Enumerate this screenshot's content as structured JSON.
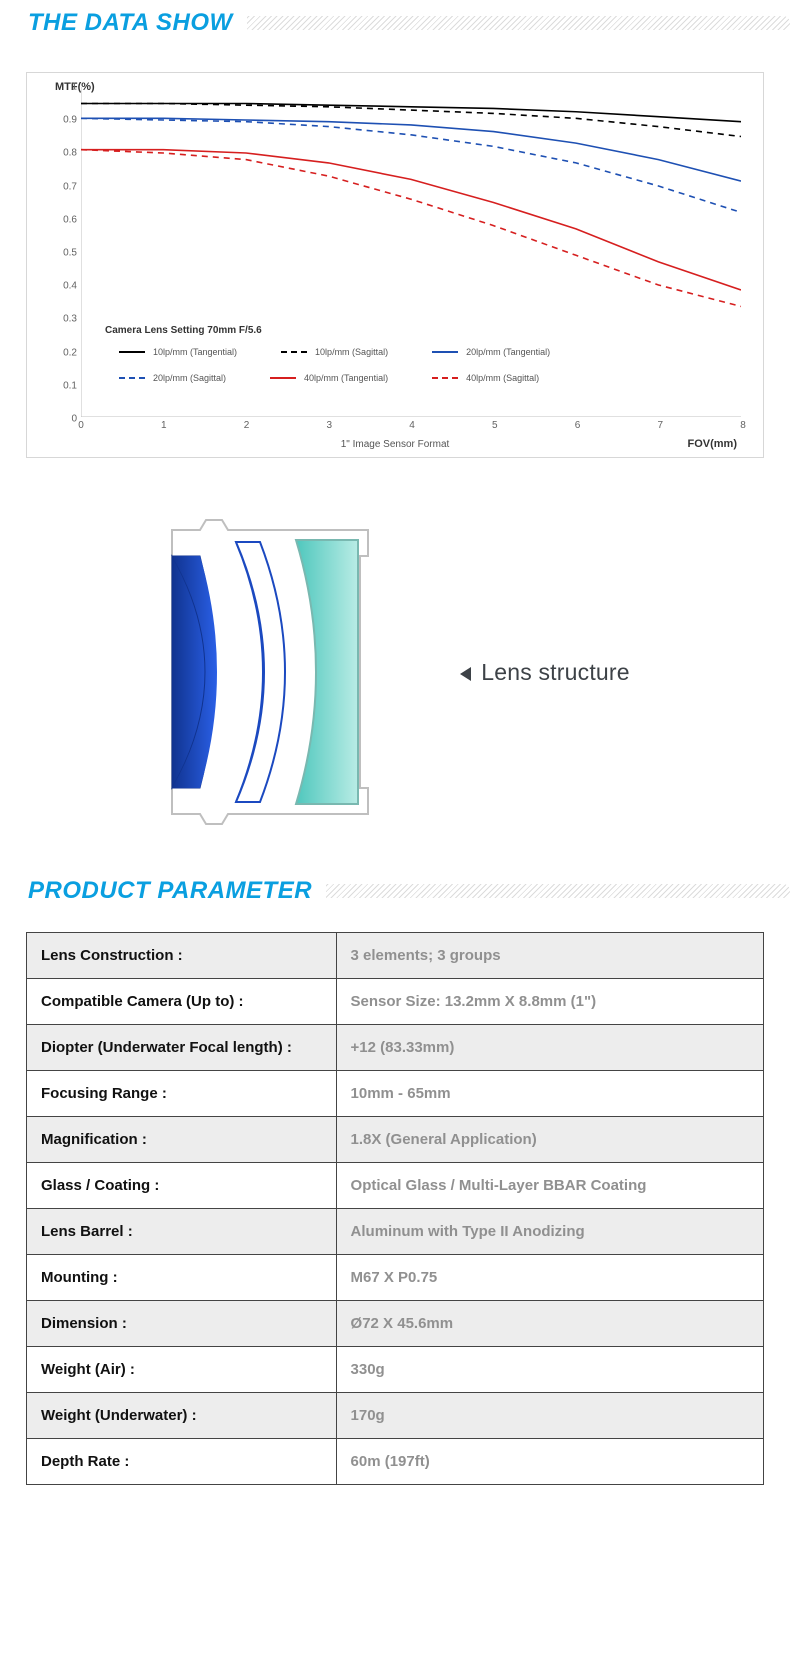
{
  "section_titles": {
    "data_show": "THE DATA SHOW",
    "product_parameter": "PRODUCT PARAMETER"
  },
  "mtf_chart": {
    "type": "line",
    "y_title": "MTF(%)",
    "x_caption": "1\" Image Sensor Format",
    "x_right_label": "FOV(mm)",
    "xlim": [
      0,
      8
    ],
    "ylim": [
      0,
      1
    ],
    "x_ticks": [
      "0",
      "1",
      "2",
      "3",
      "4",
      "5",
      "6",
      "7",
      "8"
    ],
    "y_ticks": [
      "0",
      "0.1",
      "0.2",
      "0.3",
      "0.4",
      "0.5",
      "0.6",
      "0.7",
      "0.8",
      "0.9",
      "1"
    ],
    "tick_fontsize": 10,
    "title_fontsize": 11,
    "axis_color": "#c0c0c0",
    "grid_color": "#e0e0e0",
    "background_color": "#ffffff",
    "legend_title": "Camera Lens Setting 70mm F/5.6",
    "legend_items": [
      {
        "label": "10lp/mm (Tangential)",
        "color": "#000000",
        "dash": "solid"
      },
      {
        "label": "10lp/mm (Sagittal)",
        "color": "#000000",
        "dash": "dashed"
      },
      {
        "label": "20lp/mm (Tangential)",
        "color": "#1e50b3",
        "dash": "solid"
      },
      {
        "label": "20lp/mm (Sagittal)",
        "color": "#1e50b3",
        "dash": "dashed"
      },
      {
        "label": "40lp/mm (Tangential)",
        "color": "#d61f1f",
        "dash": "solid"
      },
      {
        "label": "40lp/mm (Sagittal)",
        "color": "#d61f1f",
        "dash": "dashed"
      }
    ],
    "line_width": 1.6,
    "series": [
      {
        "name": "10lp_tang",
        "color": "#000000",
        "dash": "solid",
        "x": [
          0,
          1,
          2,
          3,
          4,
          5,
          6,
          7,
          8
        ],
        "y": [
          0.95,
          0.95,
          0.95,
          0.945,
          0.94,
          0.935,
          0.925,
          0.91,
          0.895
        ]
      },
      {
        "name": "10lp_sag",
        "color": "#000000",
        "dash": "dashed",
        "x": [
          0,
          1,
          2,
          3,
          4,
          5,
          6,
          7,
          8
        ],
        "y": [
          0.95,
          0.95,
          0.945,
          0.94,
          0.93,
          0.92,
          0.905,
          0.88,
          0.85
        ]
      },
      {
        "name": "20lp_tang",
        "color": "#1e50b3",
        "dash": "solid",
        "x": [
          0,
          1,
          2,
          3,
          4,
          5,
          6,
          7,
          8
        ],
        "y": [
          0.905,
          0.905,
          0.9,
          0.895,
          0.885,
          0.865,
          0.83,
          0.78,
          0.715
        ]
      },
      {
        "name": "20lp_sag",
        "color": "#1e50b3",
        "dash": "dashed",
        "x": [
          0,
          1,
          2,
          3,
          4,
          5,
          6,
          7,
          8
        ],
        "y": [
          0.905,
          0.9,
          0.895,
          0.88,
          0.855,
          0.82,
          0.77,
          0.7,
          0.62
        ]
      },
      {
        "name": "40lp_tang",
        "color": "#d61f1f",
        "dash": "solid",
        "x": [
          0,
          1,
          2,
          3,
          4,
          5,
          6,
          7,
          8
        ],
        "y": [
          0.81,
          0.81,
          0.8,
          0.77,
          0.72,
          0.65,
          0.57,
          0.47,
          0.385
        ]
      },
      {
        "name": "40lp_sag",
        "color": "#d61f1f",
        "dash": "dashed",
        "x": [
          0,
          1,
          2,
          3,
          4,
          5,
          6,
          7,
          8
        ],
        "y": [
          0.81,
          0.8,
          0.78,
          0.73,
          0.66,
          0.58,
          0.49,
          0.4,
          0.335
        ]
      }
    ]
  },
  "lens_structure": {
    "label": "Lens structure",
    "arrow_color": "#3d4247",
    "housing_stroke": "#bfbfbf",
    "element1_fill_from": "#10338f",
    "element1_fill_to": "#1b49c0",
    "element2_fill": "#ffffff",
    "element2_stroke": "#1b49c0",
    "element3_fill_from": "#64d1c9",
    "element3_fill_to": "#b6e8e2",
    "element3_stroke": "#8bbfb8"
  },
  "parameters": {
    "rows": [
      {
        "k": "Lens Construction :",
        "v": "3 elements; 3 groups"
      },
      {
        "k": "Compatible Camera (Up to) :",
        "v": "Sensor Size: 13.2mm X 8.8mm (1\")"
      },
      {
        "k": "Diopter (Underwater Focal length) :",
        "v": "+12 (83.33mm)"
      },
      {
        "k": "Focusing Range :",
        "v": "10mm - 65mm"
      },
      {
        "k": "Magnification :",
        "v": "1.8X (General Application)"
      },
      {
        "k": "Glass / Coating :",
        "v": "Optical Glass / Multi-Layer BBAR Coating"
      },
      {
        "k": "Lens Barrel :",
        "v": "Aluminum with Type II Anodizing"
      },
      {
        "k": "Mounting :",
        "v": "M67 X P0.75"
      },
      {
        "k": "Dimension :",
        "v": "Ø72 X 45.6mm"
      },
      {
        "k": "Weight (Air) :",
        "v": "330g"
      },
      {
        "k": "Weight (Underwater) :",
        "v": "170g"
      },
      {
        "k": "Depth Rate :",
        "v": "60m (197ft)"
      }
    ],
    "header_bg": "#ededed",
    "alt_bg": "#ffffff",
    "border_color": "#444444",
    "key_color": "#111111",
    "value_color": "#909090",
    "fontsize": 15
  }
}
